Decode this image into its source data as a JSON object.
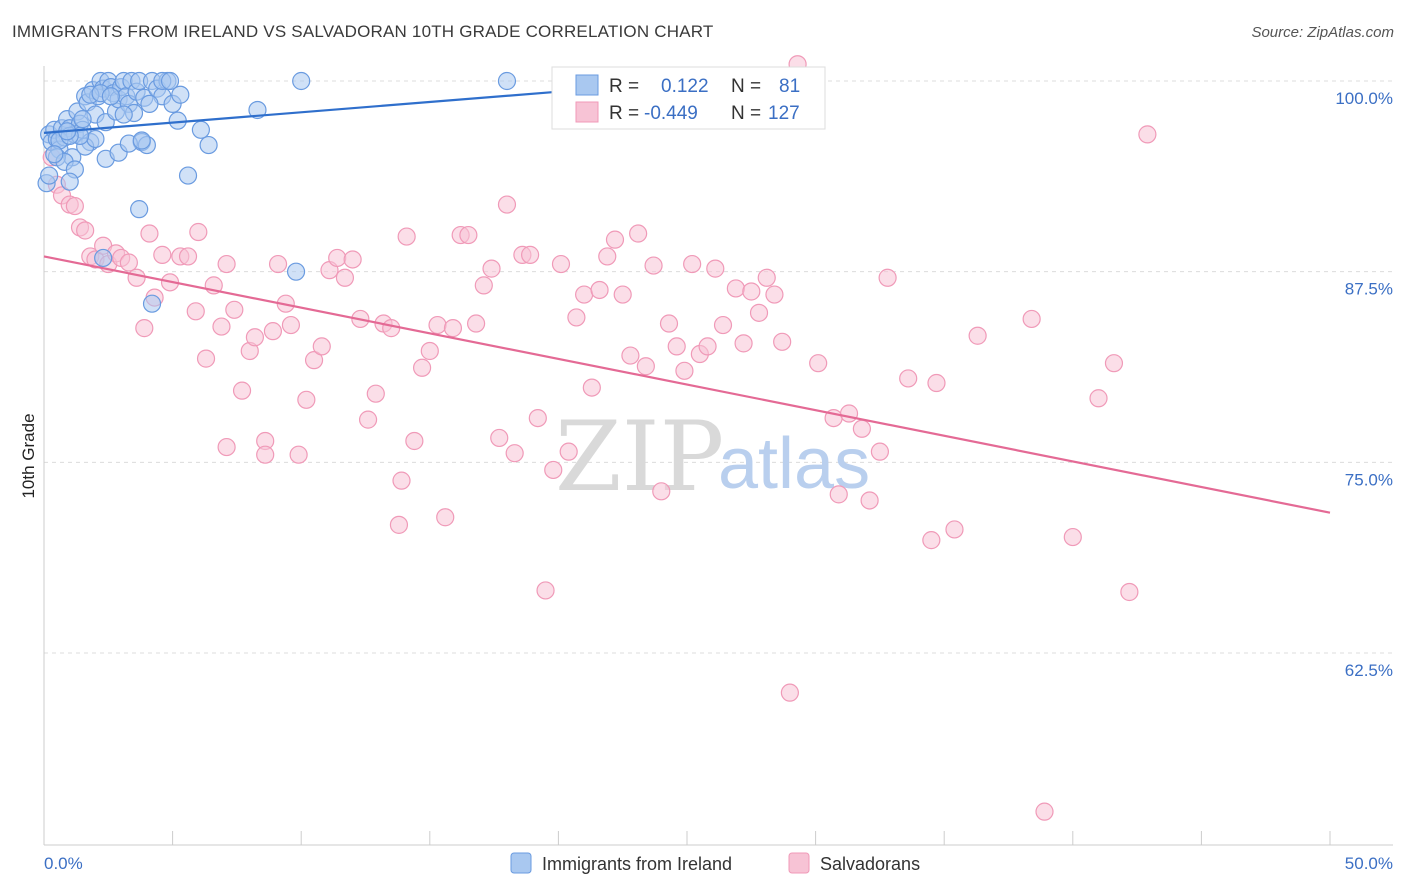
{
  "header": {
    "title": "IMMIGRANTS FROM IRELAND VS SALVADORAN 10TH GRADE CORRELATION CHART",
    "source": "Source: ZipAtlas.com"
  },
  "watermark": {
    "part1": "ZIP",
    "part2": "atlas"
  },
  "chart_data": {
    "type": "scatter",
    "title": "IMMIGRANTS FROM IRELAND VS SALVADORAN 10TH GRADE CORRELATION CHART",
    "xlabel": "",
    "ylabel": "10th Grade",
    "xlim": [
      0,
      50
    ],
    "ylim": [
      50,
      102.5
    ],
    "x_tick_labels": [
      "0.0%",
      "50.0%"
    ],
    "y_ticks": [
      62.5,
      75.0,
      87.5,
      100.0
    ],
    "y_tick_labels": [
      "62.5%",
      "75.0%",
      "87.5%",
      "100.0%"
    ],
    "grid": true,
    "legend": {
      "placement": "top-center",
      "rows": [
        {
          "r_label": "R =",
          "r_value": "0.122",
          "n_label": "N =",
          "n_value": "81"
        },
        {
          "r_label": "R =",
          "r_value": "-0.449",
          "n_label": "N =",
          "n_value": "127"
        }
      ]
    },
    "series": [
      {
        "name": "Immigrants from Ireland",
        "color": "#6a9be0",
        "fill": "#a9c8f0",
        "line_color": "#2f6fcc",
        "trend": {
          "x": [
            0,
            20
          ],
          "y": [
            96.6,
            99.3
          ]
        },
        "points": [
          [
            0.2,
            96.5
          ],
          [
            0.3,
            96
          ],
          [
            0.4,
            96.8
          ],
          [
            0.5,
            96.2
          ],
          [
            0.6,
            95.5
          ],
          [
            0.7,
            96.9
          ],
          [
            0.8,
            96.3
          ],
          [
            0.9,
            97.5
          ],
          [
            1.0,
            96.9
          ],
          [
            1.1,
            95
          ],
          [
            1.2,
            96.5
          ],
          [
            1.3,
            98
          ],
          [
            1.4,
            97.2
          ],
          [
            1.5,
            96.8
          ],
          [
            1.6,
            99
          ],
          [
            1.7,
            98.6
          ],
          [
            1.8,
            96
          ],
          [
            1.9,
            99.4
          ],
          [
            2.0,
            97.8
          ],
          [
            2.1,
            99
          ],
          [
            2.2,
            100
          ],
          [
            2.3,
            99.5
          ],
          [
            2.4,
            97.3
          ],
          [
            2.5,
            100
          ],
          [
            2.6,
            99.6
          ],
          [
            2.7,
            99.2
          ],
          [
            2.8,
            98
          ],
          [
            2.9,
            98.8
          ],
          [
            3.0,
            99.6
          ],
          [
            3.1,
            100
          ],
          [
            3.2,
            99
          ],
          [
            3.3,
            98.5
          ],
          [
            3.4,
            100
          ],
          [
            3.5,
            97.9
          ],
          [
            3.6,
            99.3
          ],
          [
            3.7,
            100
          ],
          [
            3.8,
            96
          ],
          [
            3.9,
            98.9
          ],
          [
            4.0,
            95.8
          ],
          [
            4.2,
            100
          ],
          [
            4.4,
            99.5
          ],
          [
            4.6,
            99
          ],
          [
            4.8,
            100
          ],
          [
            5.0,
            98.5
          ],
          [
            5.2,
            97.4
          ],
          [
            0.5,
            95
          ],
          [
            0.8,
            94.7
          ],
          [
            1.2,
            94.2
          ],
          [
            1.6,
            95.7
          ],
          [
            2.0,
            96.2
          ],
          [
            2.4,
            94.9
          ],
          [
            2.9,
            95.3
          ],
          [
            3.3,
            95.9
          ],
          [
            3.8,
            96.1
          ],
          [
            1.0,
            93.4
          ],
          [
            1.4,
            96.4
          ],
          [
            5.6,
            93.8
          ],
          [
            6.1,
            96.8
          ],
          [
            6.4,
            95.8
          ],
          [
            8.3,
            98.1
          ],
          [
            10.0,
            100
          ],
          [
            18.0,
            100
          ],
          [
            3.7,
            91.6
          ],
          [
            2.3,
            88.4
          ],
          [
            4.2,
            85.4
          ],
          [
            9.8,
            87.5
          ],
          [
            0.1,
            93.3
          ],
          [
            0.2,
            93.8
          ],
          [
            0.6,
            96.1
          ],
          [
            1.0,
            96.4
          ],
          [
            1.8,
            99.1
          ],
          [
            2.2,
            99.2
          ],
          [
            2.6,
            99
          ],
          [
            3.1,
            97.8
          ],
          [
            4.1,
            98.5
          ],
          [
            4.6,
            100
          ],
          [
            4.9,
            100
          ],
          [
            5.3,
            99.1
          ],
          [
            0.4,
            95.2
          ],
          [
            0.9,
            96.7
          ],
          [
            1.5,
            97.5
          ]
        ]
      },
      {
        "name": "Salvadorans",
        "color": "#f09ab8",
        "fill": "#f7c3d5",
        "line_color": "#e46a95",
        "trend": {
          "x": [
            0,
            50
          ],
          "y": [
            88.5,
            71.7
          ]
        },
        "points": [
          [
            0.3,
            95
          ],
          [
            0.5,
            93.2
          ],
          [
            0.7,
            92.5
          ],
          [
            1.0,
            91.9
          ],
          [
            1.2,
            91.8
          ],
          [
            1.4,
            90.4
          ],
          [
            1.6,
            90.2
          ],
          [
            1.8,
            88.5
          ],
          [
            2.0,
            88.3
          ],
          [
            2.3,
            89.2
          ],
          [
            2.5,
            88
          ],
          [
            2.8,
            88.7
          ],
          [
            3.0,
            88.4
          ],
          [
            3.3,
            88.1
          ],
          [
            3.6,
            87.1
          ],
          [
            3.9,
            83.8
          ],
          [
            4.1,
            90
          ],
          [
            4.3,
            85.8
          ],
          [
            4.6,
            88.6
          ],
          [
            4.9,
            86.8
          ],
          [
            5.3,
            88.5
          ],
          [
            5.6,
            88.5
          ],
          [
            5.9,
            84.9
          ],
          [
            6.0,
            90.1
          ],
          [
            6.3,
            81.8
          ],
          [
            6.6,
            86.6
          ],
          [
            6.9,
            83.9
          ],
          [
            7.1,
            88
          ],
          [
            7.4,
            85
          ],
          [
            7.7,
            79.7
          ],
          [
            8.0,
            82.3
          ],
          [
            8.2,
            83.2
          ],
          [
            8.6,
            76.4
          ],
          [
            8.9,
            83.6
          ],
          [
            9.1,
            88
          ],
          [
            9.4,
            85.4
          ],
          [
            9.6,
            84
          ],
          [
            9.9,
            75.5
          ],
          [
            10.2,
            79.1
          ],
          [
            10.5,
            81.7
          ],
          [
            10.8,
            82.6
          ],
          [
            11.1,
            87.6
          ],
          [
            11.4,
            88.4
          ],
          [
            11.7,
            87.1
          ],
          [
            12.0,
            88.3
          ],
          [
            12.3,
            84.4
          ],
          [
            12.6,
            77.8
          ],
          [
            12.9,
            79.5
          ],
          [
            13.2,
            84.1
          ],
          [
            13.5,
            83.8
          ],
          [
            13.8,
            70.9
          ],
          [
            14.1,
            89.8
          ],
          [
            14.4,
            76.4
          ],
          [
            14.7,
            81.2
          ],
          [
            15.0,
            82.3
          ],
          [
            15.3,
            84
          ],
          [
            15.6,
            71.4
          ],
          [
            15.9,
            83.8
          ],
          [
            16.2,
            89.9
          ],
          [
            16.5,
            89.9
          ],
          [
            16.8,
            84.1
          ],
          [
            17.1,
            86.6
          ],
          [
            17.4,
            87.7
          ],
          [
            17.7,
            76.6
          ],
          [
            18.0,
            91.9
          ],
          [
            18.3,
            75.6
          ],
          [
            18.6,
            88.6
          ],
          [
            18.9,
            88.6
          ],
          [
            19.2,
            77.9
          ],
          [
            19.5,
            66.6
          ],
          [
            19.8,
            74.5
          ],
          [
            20.1,
            88
          ],
          [
            20.4,
            75.7
          ],
          [
            20.7,
            84.5
          ],
          [
            21.0,
            86
          ],
          [
            21.3,
            79.9
          ],
          [
            21.6,
            86.3
          ],
          [
            21.9,
            88.5
          ],
          [
            22.2,
            89.6
          ],
          [
            22.5,
            86
          ],
          [
            22.8,
            82
          ],
          [
            23.1,
            90
          ],
          [
            23.4,
            81.3
          ],
          [
            23.7,
            87.9
          ],
          [
            24.0,
            73.1
          ],
          [
            24.3,
            84.1
          ],
          [
            24.6,
            82.6
          ],
          [
            24.9,
            81
          ],
          [
            25.2,
            88
          ],
          [
            25.5,
            82.1
          ],
          [
            25.8,
            82.6
          ],
          [
            26.1,
            87.7
          ],
          [
            26.4,
            84
          ],
          [
            26.9,
            86.4
          ],
          [
            27.2,
            82.8
          ],
          [
            27.5,
            86.2
          ],
          [
            27.8,
            84.8
          ],
          [
            28.1,
            87.1
          ],
          [
            28.4,
            86
          ],
          [
            28.7,
            82.9
          ],
          [
            29.0,
            59.9
          ],
          [
            29.3,
            101.1
          ],
          [
            30.1,
            81.5
          ],
          [
            30.7,
            77.9
          ],
          [
            30.9,
            72.9
          ],
          [
            31.3,
            78.2
          ],
          [
            31.8,
            77.2
          ],
          [
            32.1,
            72.5
          ],
          [
            32.5,
            75.7
          ],
          [
            32.8,
            87.1
          ],
          [
            33.6,
            80.5
          ],
          [
            34.5,
            69.9
          ],
          [
            34.7,
            80.2
          ],
          [
            35.4,
            70.6
          ],
          [
            36.3,
            83.3
          ],
          [
            38.4,
            84.4
          ],
          [
            38.9,
            52.1
          ],
          [
            40.0,
            70.1
          ],
          [
            41.0,
            79.2
          ],
          [
            41.6,
            81.5
          ],
          [
            42.2,
            66.5
          ],
          [
            42.9,
            96.5
          ],
          [
            8.6,
            75.5
          ],
          [
            13.9,
            73.8
          ],
          [
            7.1,
            76
          ]
        ]
      }
    ]
  },
  "bottom_legend": {
    "items": [
      "Immigrants from Ireland",
      "Salvadorans"
    ]
  }
}
